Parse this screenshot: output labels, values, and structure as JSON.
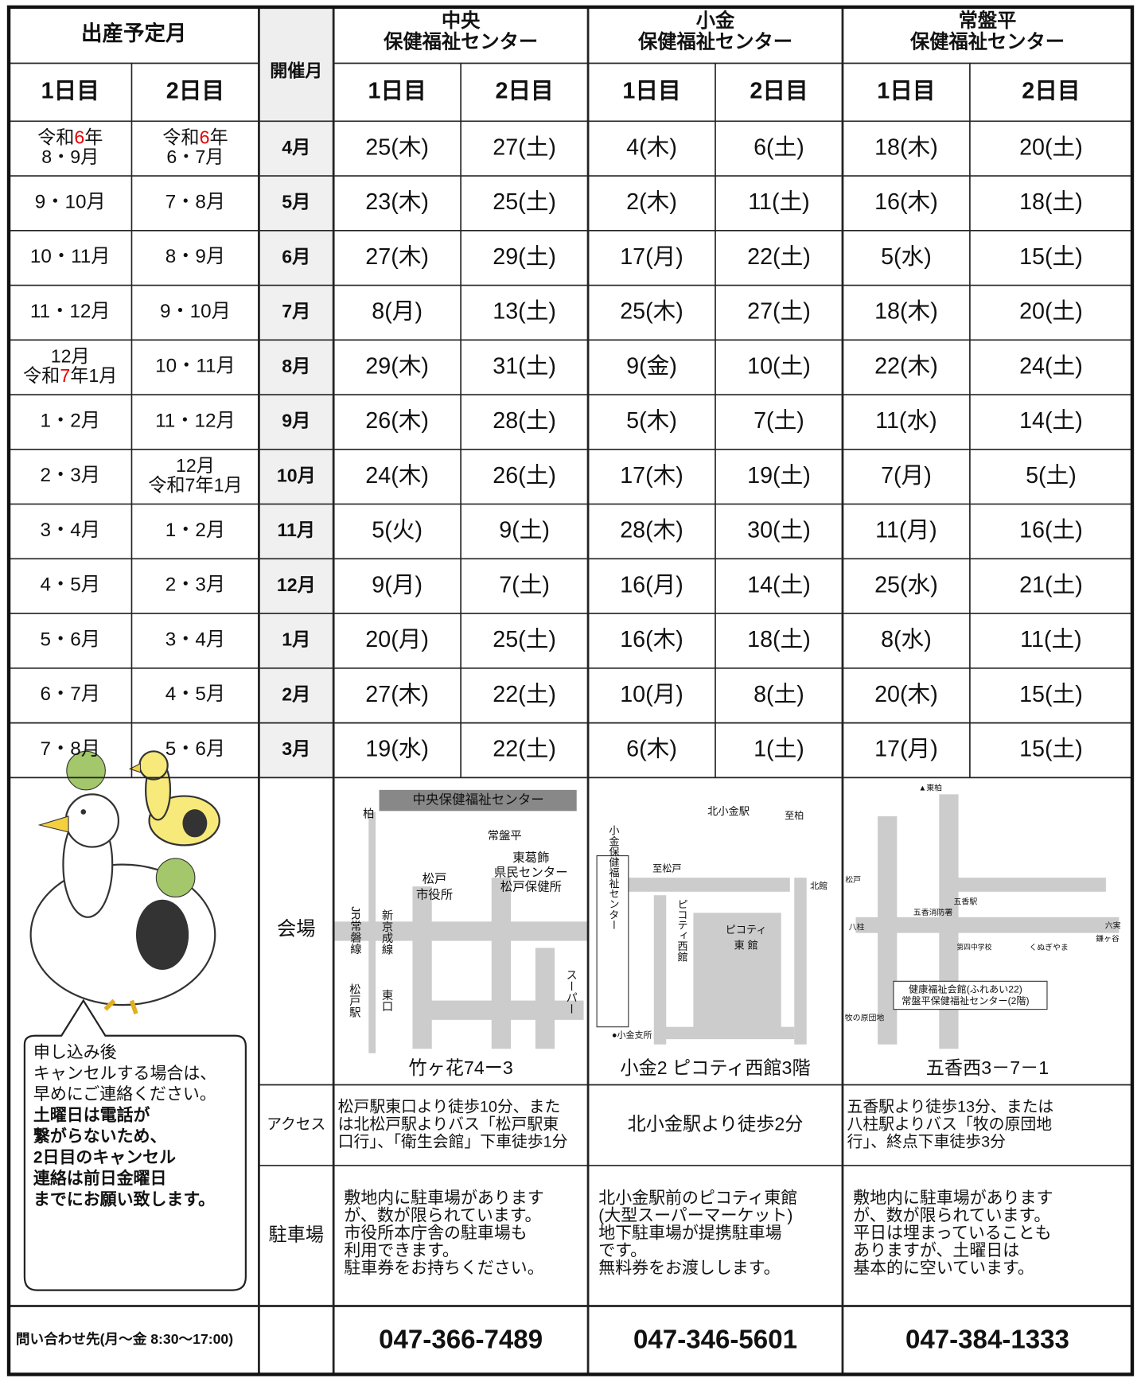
{
  "header": {
    "birth_month": "出産予定月",
    "held_month": "開催月",
    "day1": "1日目",
    "day2": "2日目",
    "centers": [
      {
        "name_lines": [
          "中央",
          "保健福祉センター"
        ]
      },
      {
        "name_lines": [
          "小金",
          "保健福祉センター"
        ]
      },
      {
        "name_lines": [
          "常盤平",
          "保健福祉センター"
        ]
      }
    ]
  },
  "rows": [
    {
      "birth_day1": [
        [
          "令和",
          {
            "text": "6",
            "color": "#e60000"
          },
          "年"
        ],
        [
          "8・9月"
        ]
      ],
      "birth_day2": [
        [
          "令和",
          {
            "text": "6",
            "color": "#e60000"
          },
          "年"
        ],
        [
          "6・7月"
        ]
      ],
      "month": "4月",
      "dates": [
        "25(木)",
        "27(土)",
        "4(木)",
        "6(土)",
        "18(木)",
        "20(土)"
      ]
    },
    {
      "birth_day1": [
        [
          "9・10月"
        ]
      ],
      "birth_day2": [
        [
          "7・8月"
        ]
      ],
      "month": "5月",
      "dates": [
        "23(木)",
        "25(土)",
        "2(木)",
        "11(土)",
        "16(木)",
        "18(土)"
      ]
    },
    {
      "birth_day1": [
        [
          "10・11月"
        ]
      ],
      "birth_day2": [
        [
          "8・9月"
        ]
      ],
      "month": "6月",
      "dates": [
        "27(木)",
        "29(土)",
        "17(月)",
        "22(土)",
        "5(水)",
        "15(土)"
      ]
    },
    {
      "birth_day1": [
        [
          "11・12月"
        ]
      ],
      "birth_day2": [
        [
          "9・10月"
        ]
      ],
      "month": "7月",
      "dates": [
        "8(月)",
        "13(土)",
        "25(木)",
        "27(土)",
        "18(木)",
        "20(土)"
      ]
    },
    {
      "birth_day1": [
        [
          "12月"
        ],
        [
          "令和",
          {
            "text": "7",
            "color": "#e60000"
          },
          "年1月"
        ]
      ],
      "birth_day2": [
        [
          "10・11月"
        ]
      ],
      "month": "8月",
      "dates": [
        "29(木)",
        "31(土)",
        "9(金)",
        "10(土)",
        "22(木)",
        "24(土)"
      ]
    },
    {
      "birth_day1": [
        [
          "1・2月"
        ]
      ],
      "birth_day2": [
        [
          "11・12月"
        ]
      ],
      "month": "9月",
      "dates": [
        "26(木)",
        "28(土)",
        "5(木)",
        "7(土)",
        "11(水)",
        "14(土)"
      ]
    },
    {
      "birth_day1": [
        [
          "2・3月"
        ]
      ],
      "birth_day2": [
        [
          "12月"
        ],
        [
          "令和7年1月"
        ]
      ],
      "month": "10月",
      "dates": [
        "24(木)",
        "26(土)",
        "17(木)",
        "19(土)",
        "7(月)",
        "5(土)"
      ]
    },
    {
      "birth_day1": [
        [
          "3・4月"
        ]
      ],
      "birth_day2": [
        [
          "1・2月"
        ]
      ],
      "month": "11月",
      "dates": [
        "5(火)",
        "9(土)",
        "28(木)",
        "30(土)",
        "11(月)",
        "16(土)"
      ]
    },
    {
      "birth_day1": [
        [
          "4・5月"
        ]
      ],
      "birth_day2": [
        [
          "2・3月"
        ]
      ],
      "month": "12月",
      "dates": [
        "9(月)",
        "7(土)",
        "16(月)",
        "14(土)",
        "25(水)",
        "21(土)"
      ]
    },
    {
      "birth_day1": [
        [
          "5・6月"
        ]
      ],
      "birth_day2": [
        [
          "3・4月"
        ]
      ],
      "month": "1月",
      "dates": [
        "20(月)",
        "25(土)",
        "16(木)",
        "18(土)",
        "8(水)",
        "11(土)"
      ]
    },
    {
      "birth_day1": [
        [
          "6・7月"
        ]
      ],
      "birth_day2": [
        [
          "4・5月"
        ]
      ],
      "month": "2月",
      "dates": [
        "27(木)",
        "22(土)",
        "10(月)",
        "8(土)",
        "20(木)",
        "15(土)"
      ]
    },
    {
      "birth_day1": [
        [
          "7・8月"
        ]
      ],
      "birth_day2": [
        [
          "5・6月"
        ]
      ],
      "month": "3月",
      "dates": [
        "19(水)",
        "22(土)",
        "6(木)",
        "1(土)",
        "17(月)",
        "15(土)"
      ]
    }
  ],
  "labels": {
    "venue": "会場",
    "access": "アクセス",
    "parking": "駐車場",
    "contact": "問い合わせ先(月～金 8:30～17:00)"
  },
  "centers": [
    {
      "address": "竹ヶ花74ー3",
      "access": [
        "松戸駅東口より徒歩10分、また",
        "は北松戸駅よりバス「松戸駅東",
        "口行」、「衛生会館」下車徒歩1分"
      ],
      "parking": [
        "敷地内に駐車場があります",
        "が、数が限られています。",
        "市役所本庁舎の駐車場も",
        "利用できます。",
        "駐車券をお持ちください。"
      ],
      "phone": "047-366-7489",
      "map_labels": [
        "中央保健福祉センター",
        "柏",
        "常盤平",
        "東葛飾",
        "県民センター",
        "松戸保健所",
        "松戸",
        "市役所",
        "JR常磐線",
        "新京成線",
        "松戸駅",
        "東口",
        "スーパー"
      ]
    },
    {
      "address": "小金2 ピコティ西館3階",
      "access": [
        "北小金駅より徒歩2分"
      ],
      "parking": [
        "北小金駅前のピコティ東館",
        "(大型スーパーマーケット)",
        "地下駐車場が提携駐車場",
        "です。",
        "無料券をお渡しします。"
      ],
      "phone": "047-346-5601",
      "map_labels": [
        "北小金駅",
        "至柏",
        "至松戸",
        "北館",
        "小金保健福祉センター",
        "ピコティ西館",
        "ピコティ",
        "東 館",
        "●小金支所"
      ]
    },
    {
      "address": "五香西3－7－1",
      "access": [
        "五香駅より徒歩13分、または",
        "八柱駅よりバス「牧の原団地",
        "行」、終点下車徒歩3分"
      ],
      "parking": [
        "敷地内に駐車場があります",
        "が、数が限られています。",
        "平日は埋まっていることも",
        "ありますが、土曜日は",
        "基本的に空いています。"
      ],
      "phone": "047-384-1333",
      "map_labels": [
        "▲東柏",
        "松戸",
        "五香消防署",
        "五香駅",
        "六実",
        "八柱",
        "第四中学校",
        "くぬぎやま",
        "鎌ヶ谷",
        "健康福祉会館(ふれあい22)",
        "常盤平保健福祉センター(2階)",
        "牧の原団地"
      ]
    }
  ],
  "note": {
    "lines": [
      "申し込み後",
      "キャンセルする場合は、",
      "早めにご連絡ください。"
    ],
    "bold_lines": [
      "土曜日は電話が",
      "繋がらないため、",
      "2日目のキャンセル",
      "連絡は前日金曜日",
      "までにお願い致します。"
    ]
  }
}
